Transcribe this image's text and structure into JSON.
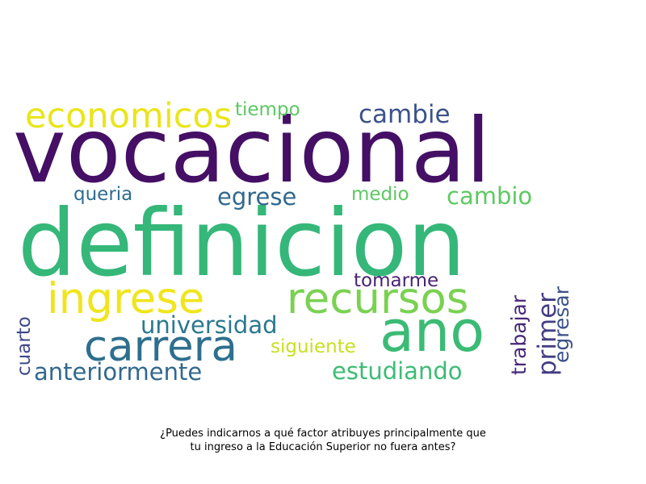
{
  "wordcloud": {
    "words": [
      {
        "text": "vocacional",
        "color": "#440f64"
      },
      {
        "text": "definicion",
        "color": "#35b779"
      },
      {
        "text": "ano",
        "color": "#3bbb75"
      },
      {
        "text": "carrera",
        "color": "#2e6f8e"
      },
      {
        "text": "ingrese",
        "color": "#f0e51c"
      },
      {
        "text": "recursos",
        "color": "#7ad151"
      },
      {
        "text": "economicos",
        "color": "#eae51a"
      },
      {
        "text": "cambie",
        "color": "#3b528b"
      },
      {
        "text": "tiempo",
        "color": "#5cc863"
      },
      {
        "text": "egrese",
        "color": "#31688e"
      },
      {
        "text": "cambio",
        "color": "#5ec962"
      },
      {
        "text": "queria",
        "color": "#2f6c8e"
      },
      {
        "text": "medio",
        "color": "#5ec962"
      },
      {
        "text": "universidad",
        "color": "#2a788e"
      },
      {
        "text": "anteriormente",
        "color": "#31688e"
      },
      {
        "text": "estudiando",
        "color": "#3dbc74"
      },
      {
        "text": "siguiente",
        "color": "#c8e020"
      },
      {
        "text": "tomarme",
        "color": "#482374"
      },
      {
        "text": "cuarto",
        "color": "#3e4989"
      },
      {
        "text": "trabajar",
        "color": "#482878"
      },
      {
        "text": "primer",
        "color": "#433e85"
      },
      {
        "text": "egresar",
        "color": "#3b528b"
      }
    ]
  },
  "caption": {
    "line1": "¿Puedes indicarnos a qué factor atribuyes principalmente que",
    "line2": "tu ingreso a la Educación Superior no fuera antes?"
  }
}
